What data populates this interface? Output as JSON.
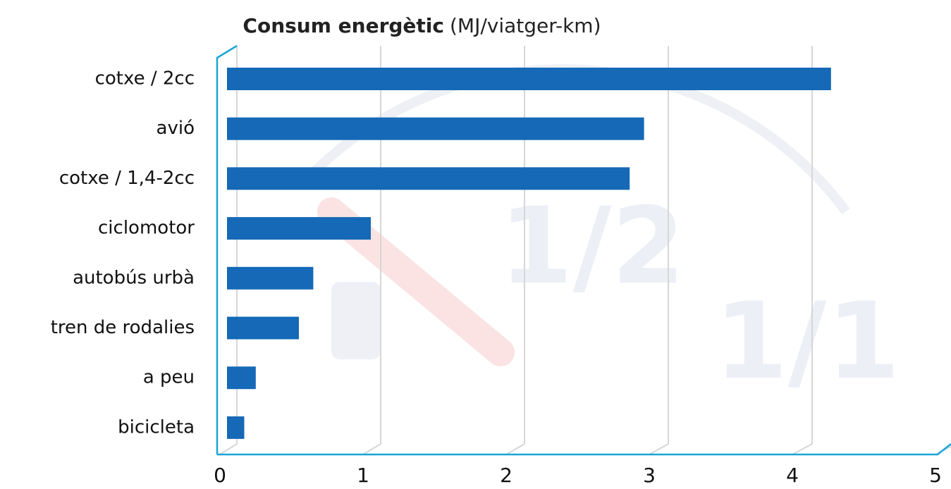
{
  "chart_data": {
    "type": "bar",
    "orientation": "horizontal",
    "title": "Consum energètic",
    "unit": "(MJ/viatger-km)",
    "categories": [
      "cotxe / 2cc",
      "avió",
      "cotxe / 1,4-2cc",
      "ciclomotor",
      "autobús urbà",
      "tren de rodalies",
      "a peu",
      "bicicleta"
    ],
    "values": [
      4.2,
      2.9,
      2.8,
      1.0,
      0.6,
      0.5,
      0.2,
      0.12
    ],
    "color": "#1569b6",
    "xlim": [
      0,
      5
    ],
    "xticks": [
      0,
      1,
      2,
      3,
      4,
      5
    ],
    "grid": true,
    "watermark": [
      "1/2",
      "1/1"
    ]
  }
}
